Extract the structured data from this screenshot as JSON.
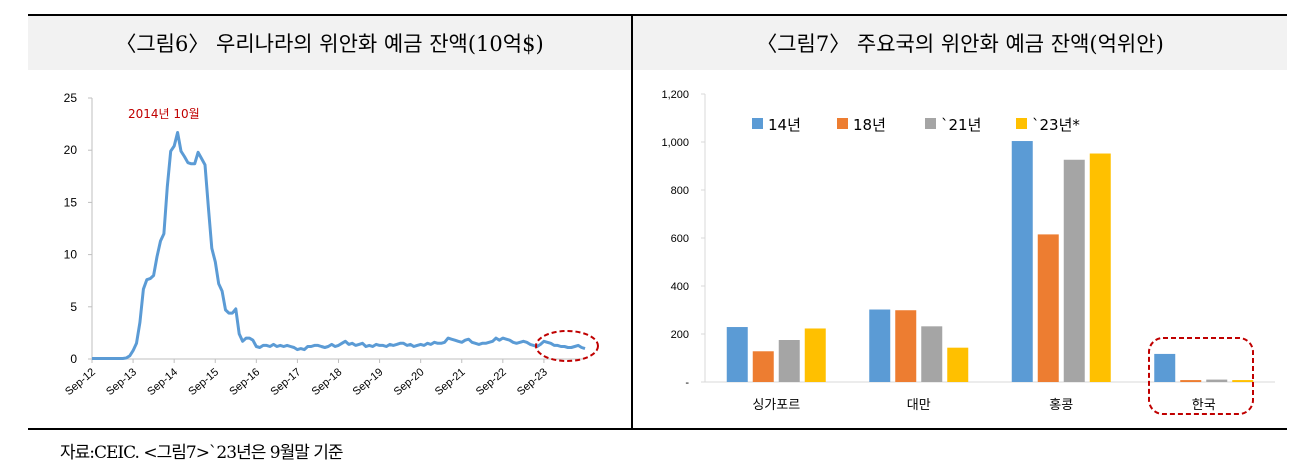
{
  "chart_data": [
    {
      "type": "line",
      "title": "〈그림6〉 우리나라의 위안화 예금 잔액(10억$)",
      "ylim": [
        0,
        25
      ],
      "yticks": [
        "0",
        "5",
        "10",
        "15",
        "20",
        "25"
      ],
      "xticks": [
        "Sep-12",
        "Sep-13",
        "Sep-14",
        "Sep-15",
        "Sep-16",
        "Sep-17",
        "Sep-18",
        "Sep-19",
        "Sep-20",
        "Sep-21",
        "Sep-22",
        "Sep-23"
      ],
      "annotation": "2014년 10월",
      "color": "#5b9bd5",
      "series": [
        {
          "values": [
            0.05,
            0.05,
            0.05,
            0.05,
            0.05,
            0.05,
            0.05,
            0.05,
            0.05,
            0.05,
            0.1,
            0.3,
            0.8,
            1.5,
            3.5,
            6.7,
            7.6,
            7.7,
            8.0,
            9.8,
            11.3,
            12.0,
            16.5,
            19.9,
            20.4,
            21.7,
            19.9,
            19.4,
            18.8,
            18.7,
            18.7,
            19.8,
            19.2,
            18.6,
            14.5,
            10.6,
            9.3,
            7.2,
            6.5,
            4.7,
            4.4,
            4.4,
            4.8,
            2.4,
            1.7,
            2.0,
            2.0,
            1.8,
            1.2,
            1.1,
            1.3,
            1.3,
            1.2,
            1.4,
            1.2,
            1.3,
            1.2,
            1.3,
            1.2,
            1.1,
            0.9,
            1.0,
            0.9,
            1.2,
            1.2,
            1.3,
            1.3,
            1.2,
            1.1,
            1.2,
            1.4,
            1.2,
            1.3,
            1.5,
            1.7,
            1.4,
            1.5,
            1.3,
            1.4,
            1.5,
            1.2,
            1.3,
            1.2,
            1.4,
            1.3,
            1.3,
            1.2,
            1.4,
            1.3,
            1.4,
            1.5,
            1.5,
            1.3,
            1.4,
            1.2,
            1.3,
            1.4,
            1.3,
            1.5,
            1.4,
            1.6,
            1.5,
            1.5,
            1.6,
            2.0,
            1.9,
            1.8,
            1.7,
            1.6,
            1.8,
            1.9,
            1.6,
            1.5,
            1.4,
            1.5,
            1.5,
            1.6,
            1.7,
            2.0,
            1.8,
            2.0,
            1.9,
            1.8,
            1.6,
            1.5,
            1.6,
            1.7,
            1.6,
            1.4,
            1.3,
            1.2,
            1.4,
            1.7,
            1.6,
            1.5,
            1.3,
            1.3,
            1.2,
            1.2,
            1.1,
            1.1,
            1.2,
            1.3,
            1.1,
            1.0
          ]
        }
      ]
    },
    {
      "type": "bar",
      "title": "〈그림7〉 주요국의 위안화 예금 잔액(억위안)",
      "categories": [
        "싱가포르",
        "대만",
        "홍콩",
        "한국"
      ],
      "ylim": [
        0,
        1200
      ],
      "yticks": [
        "-",
        "200",
        "400",
        "600",
        "800",
        "1,000",
        "1,200"
      ],
      "legend_position": "top-left",
      "series": [
        {
          "name": "14년",
          "color": "#5b9bd5",
          "values": [
            229,
            302,
            1004,
            117
          ]
        },
        {
          "name": "18년",
          "color": "#ed7d31",
          "values": [
            128,
            299,
            615,
            8
          ]
        },
        {
          "name": "`21년",
          "color": "#a5a5a5",
          "values": [
            175,
            232,
            926,
            10
          ]
        },
        {
          "name": "`23년*",
          "color": "#ffc000",
          "values": [
            223,
            143,
            952,
            8
          ]
        }
      ]
    }
  ],
  "source_note": "자료:CEIC.  <그림7>`23년은 9월말 기준",
  "highlight_color": "#c00000"
}
